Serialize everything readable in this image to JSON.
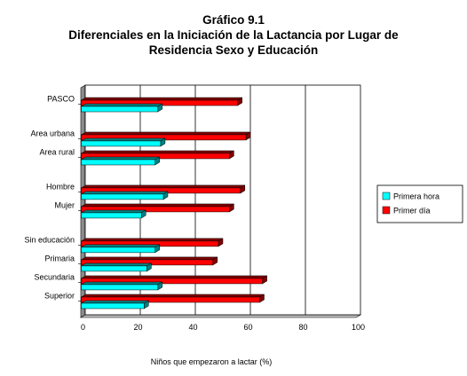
{
  "chart_data": {
    "type": "bar",
    "orientation": "horizontal",
    "title": [
      "Gráfico 9.1",
      "Diferenciales en la Iniciación de la Lactancia por Lugar de",
      "Residencia Sexo y Educación"
    ],
    "xlabel": "Niños que empezaron a lactar (%)",
    "ylabel": "",
    "xlim": [
      0,
      100
    ],
    "x_ticks": [
      "0",
      "20",
      "40",
      "60",
      "80",
      "100"
    ],
    "grid": "vertical lines at 20, 40, 60, 80",
    "legend_position": "right",
    "categories": [
      {
        "label": "PASCO",
        "group": 0
      },
      {
        "label": "Area urbana",
        "group": 1
      },
      {
        "label": "Area rural",
        "group": 1
      },
      {
        "label": "Hombre",
        "group": 2
      },
      {
        "label": "Mujer",
        "group": 2
      },
      {
        "label": "Sin educación",
        "group": 3
      },
      {
        "label": "Primaria",
        "group": 3
      },
      {
        "label": "Secundaria",
        "group": 3
      },
      {
        "label": "Superior",
        "group": 3
      }
    ],
    "series": [
      {
        "name": "Primera hora",
        "color": "#00FFFF",
        "values": [
          28,
          29,
          27,
          30,
          22,
          27,
          24,
          28,
          23
        ]
      },
      {
        "name": "Primer día",
        "color": "#FF0000",
        "values": [
          57,
          60,
          54,
          58,
          54,
          50,
          48,
          66,
          65
        ]
      }
    ]
  }
}
